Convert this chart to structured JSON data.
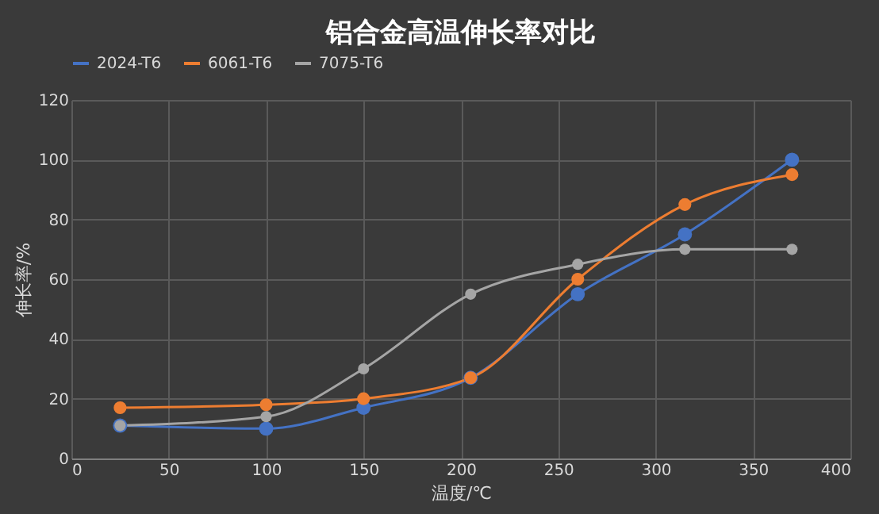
{
  "chart_data": {
    "type": "line",
    "title": "铝合金高温伸长率对比",
    "xlabel": "温度/℃",
    "ylabel": "伸长率/%",
    "x": [
      25,
      100,
      150,
      205,
      260,
      315,
      370
    ],
    "series": [
      {
        "name": "2024-T6",
        "color": "#4472c4",
        "values": [
          11,
          10,
          17,
          27,
          55,
          75,
          100
        ]
      },
      {
        "name": "6061-T6",
        "color": "#ed7d31",
        "values": [
          17,
          18,
          20,
          27,
          60,
          85,
          95
        ]
      },
      {
        "name": "7075-T6",
        "color": "#a5a5a5",
        "values": [
          11,
          14,
          30,
          55,
          65,
          70,
          70
        ]
      }
    ],
    "xlim": [
      0,
      400
    ],
    "xticks": [
      0,
      50,
      100,
      150,
      200,
      250,
      300,
      350,
      400
    ],
    "ylim": [
      0,
      120
    ],
    "yticks": [
      0,
      20,
      40,
      60,
      80,
      100,
      120
    ],
    "grid": true,
    "legend": "top",
    "marker": "circle",
    "line_style": "solid"
  }
}
